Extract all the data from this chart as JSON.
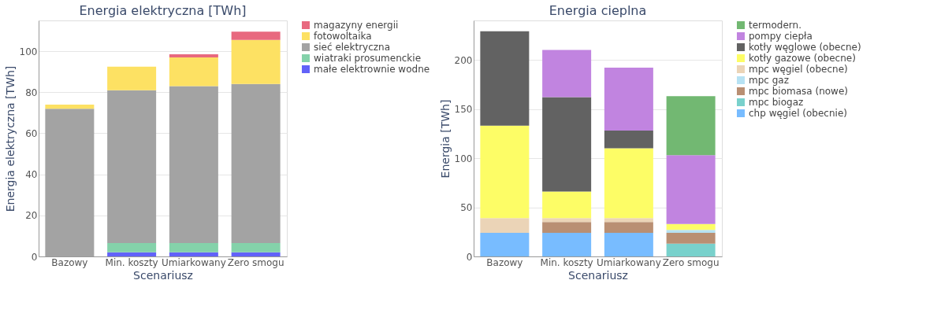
{
  "chart_data": [
    {
      "type": "bar",
      "title": "Energia elektryczna [TWh]",
      "xlabel": "Scenariusz",
      "ylabel": "Energia elektryczna [TWh]",
      "categories": [
        "Bazowy",
        "Min. koszty",
        "Umiarkowany",
        "Zero smogu"
      ],
      "stacked": true,
      "ylim": [
        0,
        115
      ],
      "yticks": [
        0,
        20,
        40,
        60,
        80,
        100
      ],
      "grid": "y",
      "legend": "top right",
      "series": [
        {
          "name": "małe elektrownie wodne",
          "color": "#6262f8",
          "values": [
            0,
            2,
            2,
            2
          ]
        },
        {
          "name": "wiatraki prosumenckie",
          "color": "#84d2aa",
          "values": [
            0,
            4.5,
            4.5,
            4.5
          ]
        },
        {
          "name": "sieć elektryczna",
          "color": "#a3a3a3",
          "values": [
            72,
            74.5,
            76.5,
            77.5
          ]
        },
        {
          "name": "fotowoltaika",
          "color": "#fde163",
          "values": [
            2,
            11.5,
            14,
            21.5
          ]
        },
        {
          "name": "magazyny energii",
          "color": "#e8697f",
          "values": [
            0,
            0,
            1.5,
            4
          ]
        }
      ]
    },
    {
      "type": "bar",
      "title": "Energia cieplna",
      "xlabel": "Scenariusz",
      "ylabel": "Energia [TWh]",
      "categories": [
        "Bazowy",
        "Min. koszty",
        "Umiarkowany",
        "Zero smogu"
      ],
      "stacked": true,
      "ylim": [
        0,
        240
      ],
      "yticks": [
        0,
        50,
        100,
        150,
        200
      ],
      "grid": "y",
      "legend": "top right",
      "series": [
        {
          "name": "chp węgiel (obecnie)",
          "color": "#78bcff",
          "values": [
            24,
            24,
            24,
            0
          ]
        },
        {
          "name": "mpc biogaz",
          "color": "#79d1cc",
          "values": [
            0,
            0,
            0,
            13
          ]
        },
        {
          "name": "mpc biomasa (nowe)",
          "color": "#b98f73",
          "values": [
            0,
            11,
            11,
            11
          ]
        },
        {
          "name": "mpc gaz",
          "color": "#b7e2f3",
          "values": [
            0,
            0,
            0,
            3
          ]
        },
        {
          "name": "mpc węgiel (obecne)",
          "color": "#ebd4b7",
          "values": [
            15,
            4,
            4,
            0
          ]
        },
        {
          "name": "kotły gazowe (obecne)",
          "color": "#fdfd66",
          "values": [
            94,
            27,
            71,
            6
          ]
        },
        {
          "name": "kotły węglowe (obecne)",
          "color": "#626262",
          "values": [
            96,
            96,
            18,
            0
          ]
        },
        {
          "name": "pompy ciepła",
          "color": "#c184e0",
          "values": [
            0,
            48,
            64,
            70
          ]
        },
        {
          "name": "termodern.",
          "color": "#72b872",
          "values": [
            0,
            0,
            0,
            60
          ]
        }
      ]
    }
  ]
}
